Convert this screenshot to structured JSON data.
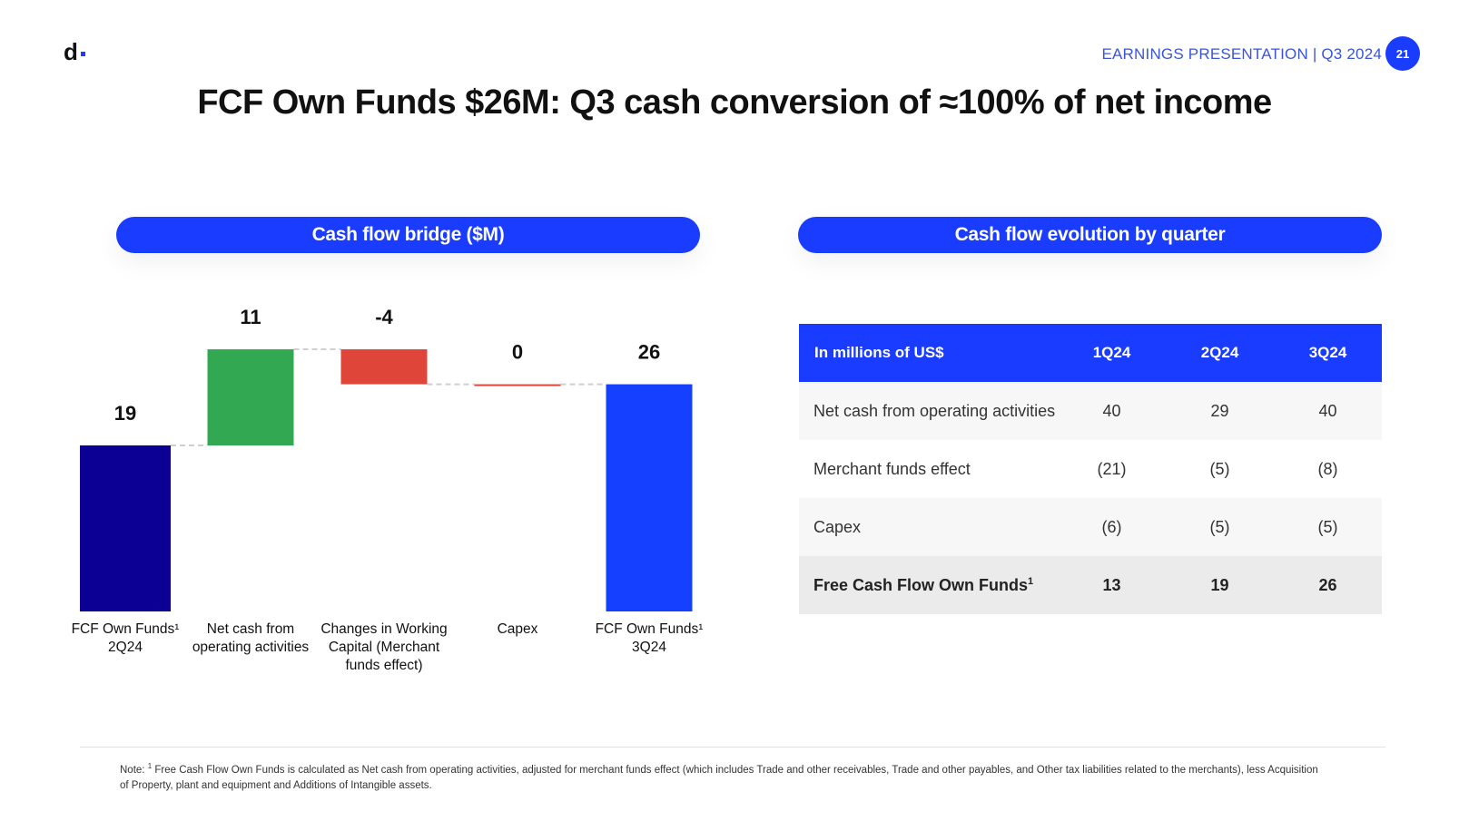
{
  "header": {
    "presentation": "EARNINGS PRESENTATION | Q3 2024",
    "page_number": "21",
    "logo_text": "d"
  },
  "title": "FCF Own Funds $26M: Q3 cash conversion of ≈100% of net income",
  "left_panel": {
    "title": "Cash flow bridge ($M)"
  },
  "right_panel": {
    "title": "Cash flow evolution by quarter"
  },
  "colors": {
    "accent": "#1a3cff",
    "start_bar": "#0c0094",
    "positive": "#33a852",
    "negative": "#e0453a",
    "end_bar": "#1540ff"
  },
  "chart_data": {
    "type": "bar",
    "subtype": "waterfall",
    "title": "Cash flow bridge ($M)",
    "categories": [
      "FCF Own Funds¹ 2Q24",
      "Net cash from operating activities",
      "Changes in Working Capital (Merchant funds effect)",
      "Capex",
      "FCF Own Funds¹ 3Q24"
    ],
    "category_lines": [
      [
        "FCF Own Funds¹",
        "2Q24"
      ],
      [
        "Net cash from",
        "operating activities"
      ],
      [
        "Changes in Working",
        "Capital (Merchant",
        "funds effect)"
      ],
      [
        "Capex"
      ],
      [
        "FCF Own Funds¹",
        "3Q24"
      ]
    ],
    "values": [
      19,
      11,
      -4,
      0,
      26
    ],
    "data_labels": [
      "19",
      "11",
      "-4",
      "0",
      "26"
    ],
    "kinds": [
      "total",
      "increase",
      "decrease",
      "decrease",
      "total"
    ],
    "grid": false,
    "legend": "none"
  },
  "table": {
    "headers": [
      "In millions of US$",
      "1Q24",
      "2Q24",
      "3Q24"
    ],
    "rows": [
      {
        "label": "Net cash from operating activities",
        "values": [
          "40",
          "29",
          "40"
        ]
      },
      {
        "label": "Merchant funds effect",
        "values": [
          "(21)",
          "(5)",
          "(8)"
        ]
      },
      {
        "label": "Capex",
        "values": [
          "(6)",
          "(5)",
          "(5)"
        ]
      }
    ],
    "total": {
      "label": "Free Cash Flow Own Funds",
      "sup": "1",
      "values": [
        "13",
        "19",
        "26"
      ]
    }
  },
  "footnote": {
    "prefix": "Note:",
    "sup": "1",
    "text": "Free Cash Flow Own Funds is calculated as Net cash from operating activities, adjusted for merchant funds effect (which includes Trade and other receivables, Trade and other payables, and  Other tax liabilities related to the merchants), less Acquisition of Property, plant and equipment and Additions of Intangible assets."
  }
}
